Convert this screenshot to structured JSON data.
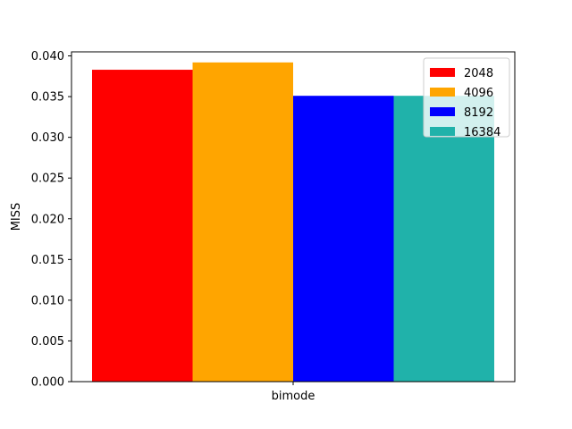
{
  "chart_data": {
    "type": "bar",
    "categories": [
      "bimode"
    ],
    "series": [
      {
        "name": "2048",
        "values": [
          0.0383
        ],
        "color": "#ff0000"
      },
      {
        "name": "4096",
        "values": [
          0.0392
        ],
        "color": "#ffa500"
      },
      {
        "name": "8192",
        "values": [
          0.0351
        ],
        "color": "#0000ff"
      },
      {
        "name": "16384",
        "values": [
          0.0351
        ],
        "color": "#20b2aa"
      }
    ],
    "title": "",
    "xlabel": "",
    "ylabel": "MISS",
    "ylim": [
      0,
      0.0405
    ],
    "yticks": [
      0.0,
      0.005,
      0.01,
      0.015,
      0.02,
      0.025,
      0.03,
      0.035,
      0.04
    ],
    "ytick_labels": [
      "0.000",
      "0.005",
      "0.010",
      "0.015",
      "0.020",
      "0.025",
      "0.030",
      "0.035",
      "0.040"
    ],
    "grid": false,
    "legend_position": "top-right"
  }
}
